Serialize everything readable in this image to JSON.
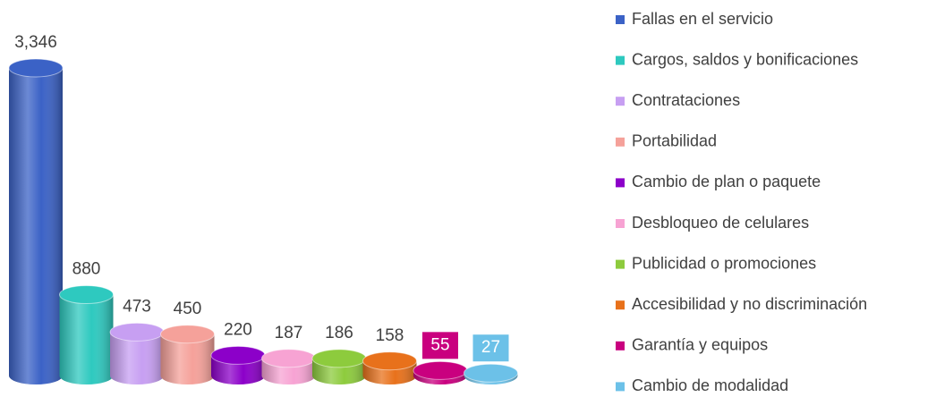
{
  "chart_data": {
    "type": "bar",
    "categories": [
      "Fallas en el servicio",
      "Cargos, saldos y bonificaciones",
      "Contrataciones",
      "Portabilidad",
      "Cambio de plan o paquete",
      "Desbloqueo de celulares",
      "Publicidad o promociones",
      "Accesibilidad y no discriminación",
      "Garantía y equipos",
      "Cambio de modalidad"
    ],
    "values": [
      3346,
      880,
      473,
      450,
      220,
      187,
      186,
      158,
      55,
      27
    ],
    "value_labels": [
      "3,346",
      "880",
      "473",
      "450",
      "220",
      "187",
      "186",
      "158",
      "55",
      "27"
    ],
    "colors": [
      "#3b62c6",
      "#2ec9bf",
      "#c79ff2",
      "#f5a19a",
      "#8c00c9",
      "#f7a3d3",
      "#8dcb3d",
      "#e8711b",
      "#c9007f",
      "#6cc1e8"
    ],
    "legend": "right"
  }
}
